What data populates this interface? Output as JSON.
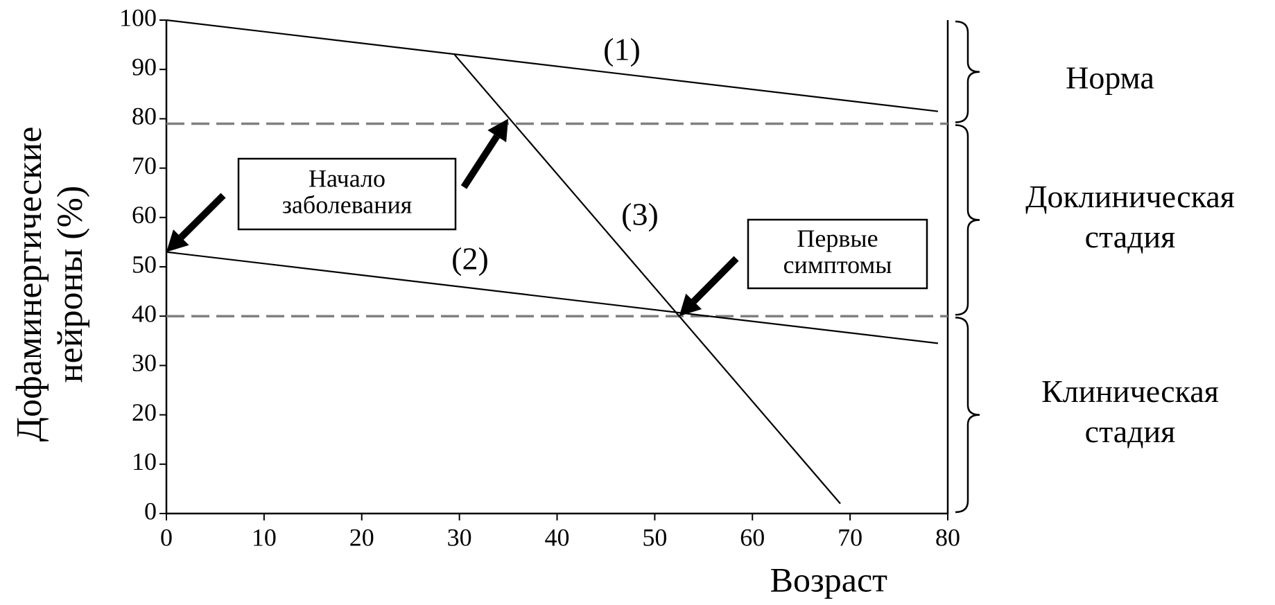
{
  "chart_data": {
    "type": "line",
    "xlabel": "Возраст",
    "ylabel": [
      "Дофаминергические",
      "нейроны (%)"
    ],
    "xlim": [
      0,
      80
    ],
    "ylim": [
      0,
      100
    ],
    "xticks": [
      0,
      10,
      20,
      30,
      40,
      50,
      60,
      70,
      80
    ],
    "yticks": [
      0,
      10,
      20,
      30,
      40,
      50,
      60,
      70,
      80,
      90,
      100
    ],
    "series": [
      {
        "name": "(1)",
        "color": "#000000",
        "x": [
          0,
          79
        ],
        "values": [
          100,
          81.5
        ]
      },
      {
        "name": "(2)",
        "color": "#000000",
        "x": [
          0,
          79
        ],
        "values": [
          53,
          34.5
        ]
      },
      {
        "name": "(3)",
        "color": "#000000",
        "x": [
          29.5,
          69
        ],
        "values": [
          93,
          2
        ]
      }
    ],
    "thresholds": [
      {
        "value": 79,
        "color": "#808080",
        "style": "dashed"
      },
      {
        "value": 40,
        "color": "#808080",
        "style": "dashed"
      }
    ],
    "annotations": [
      {
        "text": [
          "Начало",
          "заболевания"
        ],
        "points": [
          {
            "x": 0,
            "y": 53
          },
          {
            "x": 35,
            "y": 80
          }
        ]
      },
      {
        "text": [
          "Первые",
          "симптомы"
        ],
        "points": [
          {
            "x": 52.5,
            "y": 40
          }
        ]
      }
    ],
    "stages": [
      {
        "label": [
          "Норма"
        ],
        "range": [
          100,
          79
        ]
      },
      {
        "label": [
          "Доклиническая",
          "стадия"
        ],
        "range": [
          79,
          40
        ]
      },
      {
        "label": [
          "Клиническая",
          "стадия"
        ],
        "range": [
          40,
          0
        ]
      }
    ]
  }
}
